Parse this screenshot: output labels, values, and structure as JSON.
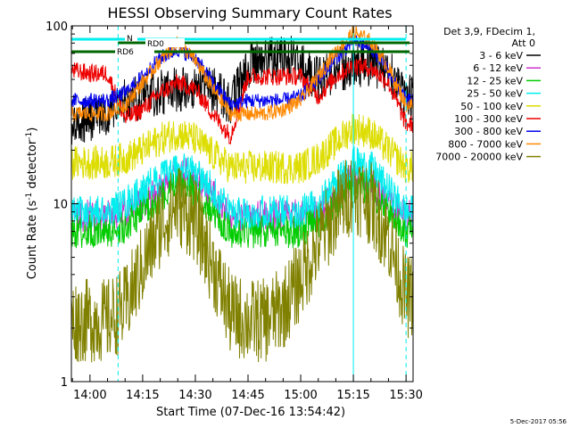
{
  "chart_data": {
    "type": "line",
    "title": "HESSI Observing Summary Count Rates",
    "xlabel": "Start Time (07-Dec-16 13:54:42)",
    "ylabel": "Count Rate (s⁻¹ detector⁻¹)",
    "yscale": "log",
    "ylim": [
      1,
      100
    ],
    "xlim": [
      "13:54:42",
      "15:32"
    ],
    "x_ticks": [
      "14:00",
      "14:15",
      "14:30",
      "14:45",
      "15:00",
      "15:15",
      "15:30"
    ],
    "y_ticks": [
      "1",
      "10",
      "100"
    ],
    "legend_header": [
      "Det 3,9, FDecim 1,",
      "Att 0"
    ],
    "legend_position": "right",
    "series": [
      {
        "name": "3 - 6 keV",
        "color": "#000000",
        "x": [
          "13:55",
          "14:00",
          "14:05",
          "14:10",
          "14:15",
          "14:20",
          "14:25",
          "14:30",
          "14:35",
          "14:40",
          "14:45",
          "14:50",
          "14:55",
          "15:00",
          "15:05",
          "15:10",
          "15:15",
          "15:20",
          "15:25",
          "15:30"
        ],
        "values": [
          28,
          30,
          32,
          38,
          40,
          42,
          44,
          46,
          44,
          36,
          60,
          66,
          68,
          62,
          50,
          56,
          60,
          62,
          56,
          40
        ]
      },
      {
        "name": "6 - 12 keV",
        "color": "#cc33cc",
        "x": [
          "13:55",
          "14:00",
          "14:05",
          "14:10",
          "14:15",
          "14:20",
          "14:25",
          "14:30",
          "14:35",
          "14:40",
          "14:45",
          "14:50",
          "14:55",
          "15:00",
          "15:05",
          "15:10",
          "15:15",
          "15:20",
          "15:25",
          "15:30"
        ],
        "values": [
          8.5,
          8.5,
          8.5,
          9,
          10,
          12,
          15,
          14,
          11,
          8.5,
          8.5,
          8.5,
          8.5,
          8.5,
          9,
          11,
          14,
          13,
          10,
          8.5
        ]
      },
      {
        "name": "12 - 25 keV",
        "color": "#00cc00",
        "x": [
          "13:55",
          "14:00",
          "14:05",
          "14:10",
          "14:15",
          "14:20",
          "14:25",
          "14:30",
          "14:35",
          "14:40",
          "14:45",
          "14:50",
          "14:55",
          "15:00",
          "15:05",
          "15:10",
          "15:15",
          "15:20",
          "15:25",
          "15:30"
        ],
        "values": [
          7,
          7,
          7,
          7.5,
          9,
          11,
          13,
          12,
          9,
          7,
          7,
          7,
          7,
          7,
          8,
          10,
          13,
          12,
          9,
          7
        ]
      },
      {
        "name": "25 - 50 keV",
        "color": "#00eeee",
        "x": [
          "13:55",
          "14:00",
          "14:05",
          "14:10",
          "14:15",
          "14:20",
          "14:25",
          "14:30",
          "14:35",
          "14:40",
          "14:45",
          "14:50",
          "14:55",
          "15:00",
          "15:05",
          "15:10",
          "15:15",
          "15:20",
          "15:25",
          "15:30"
        ],
        "values": [
          9,
          9,
          9,
          10,
          12,
          14,
          16,
          15,
          12,
          9,
          9,
          9,
          9,
          9,
          10,
          13,
          17,
          16,
          12,
          9
        ]
      },
      {
        "name": "50 - 100 keV",
        "color": "#dddd00",
        "x": [
          "13:55",
          "14:00",
          "14:05",
          "14:10",
          "14:15",
          "14:20",
          "14:25",
          "14:30",
          "14:35",
          "14:40",
          "14:45",
          "14:50",
          "14:55",
          "15:00",
          "15:05",
          "15:10",
          "15:15",
          "15:20",
          "15:25",
          "15:30"
        ],
        "values": [
          17,
          17,
          17,
          18,
          20,
          23,
          25,
          23,
          19,
          16,
          16,
          16,
          16,
          16,
          18,
          22,
          27,
          25,
          20,
          16
        ]
      },
      {
        "name": "100 - 300 keV",
        "color": "#ee0000",
        "x": [
          "13:55",
          "14:00",
          "14:05",
          "14:10",
          "14:15",
          "14:20",
          "14:25",
          "14:30",
          "14:35",
          "14:40",
          "14:45",
          "14:50",
          "14:55",
          "15:00",
          "15:05",
          "15:10",
          "15:15",
          "15:20",
          "15:25",
          "15:30"
        ],
        "values": [
          56,
          54,
          54,
          30,
          34,
          42,
          48,
          44,
          32,
          24,
          52,
          52,
          52,
          52,
          40,
          52,
          60,
          58,
          48,
          28
        ]
      },
      {
        "name": "300 - 800 keV",
        "color": "#0000ee",
        "x": [
          "13:55",
          "14:00",
          "14:05",
          "14:10",
          "14:15",
          "14:20",
          "14:25",
          "14:30",
          "14:35",
          "14:40",
          "14:45",
          "14:50",
          "14:55",
          "15:00",
          "15:05",
          "15:10",
          "15:15",
          "15:20",
          "15:25",
          "15:30"
        ],
        "values": [
          38,
          38,
          38,
          42,
          52,
          66,
          74,
          66,
          48,
          36,
          38,
          38,
          38,
          40,
          50,
          66,
          82,
          76,
          56,
          38
        ]
      },
      {
        "name": "800 - 7000 keV",
        "color": "#ff8800",
        "x": [
          "13:55",
          "14:00",
          "14:05",
          "14:10",
          "14:15",
          "14:20",
          "14:25",
          "14:30",
          "14:35",
          "14:40",
          "14:45",
          "14:50",
          "14:55",
          "15:00",
          "15:05",
          "15:10",
          "15:15",
          "15:20",
          "15:25",
          "15:30"
        ],
        "values": [
          32,
          32,
          32,
          36,
          48,
          64,
          80,
          64,
          44,
          32,
          32,
          32,
          34,
          38,
          52,
          72,
          92,
          82,
          58,
          36
        ]
      },
      {
        "name": "7000 - 20000 keV",
        "color": "#808000",
        "x": [
          "13:55",
          "14:00",
          "14:05",
          "14:10",
          "14:15",
          "14:20",
          "14:25",
          "14:30",
          "14:35",
          "14:40",
          "14:45",
          "14:50",
          "14:55",
          "15:00",
          "15:05",
          "15:10",
          "15:15",
          "15:20",
          "15:25",
          "15:30"
        ],
        "values": [
          2.2,
          2.2,
          2.2,
          2.6,
          4.5,
          7.5,
          10,
          8,
          4.5,
          2.4,
          2.2,
          2.2,
          2.6,
          3.8,
          6,
          9,
          12,
          10,
          6.5,
          3
        ]
      }
    ],
    "annotations": [
      {
        "text": "N",
        "color": "#00eeee",
        "start": "13:54:42",
        "end": "15:30"
      },
      {
        "text": "RD0",
        "color": "#006600",
        "start": "14:08",
        "end": "15:31"
      },
      {
        "text": "RD6",
        "color": "#006600",
        "start": "13:54:42",
        "end": "15:31"
      }
    ],
    "vertical_lines": [
      {
        "time": "14:08",
        "color": "#00eeee",
        "style": "dashed"
      },
      {
        "time": "15:15",
        "color": "#00eeee",
        "style": "solid"
      },
      {
        "time": "15:30",
        "color": "#00eeee",
        "style": "dashed"
      }
    ],
    "footer": "5-Dec-2017 05:56"
  }
}
